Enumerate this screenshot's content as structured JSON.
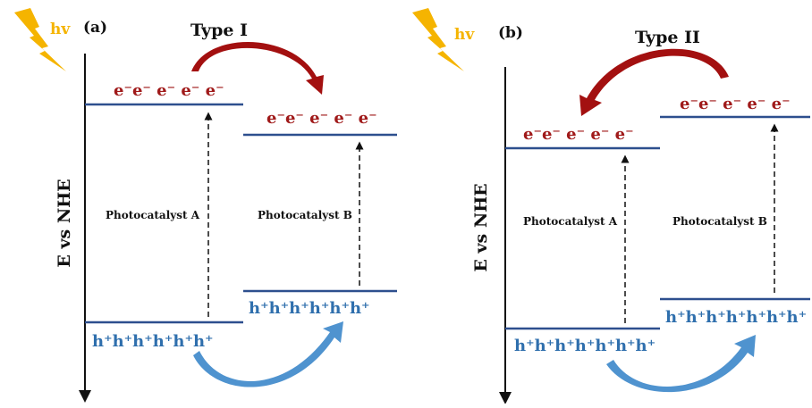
{
  "light": {
    "label": "hv",
    "color": "#f5b400"
  },
  "colors": {
    "electron": "#a01a1a",
    "hole": "#2f6fad",
    "band": "#2d4f8e",
    "arrow_e": "#a31010",
    "arrow_h": "#4f93cf"
  },
  "axis_label": "E vs NHE",
  "panels": [
    {
      "id": "a",
      "label": "(a)",
      "type": "Type I",
      "catalyst_a": "Photocatalyst A",
      "catalyst_b": "Photocatalyst B",
      "electrons_a": "e⁻e⁻ e⁻ e⁻ e⁻",
      "electrons_b": "e⁻e⁻ e⁻ e⁻ e⁻",
      "holes_a": "h⁺h⁺h⁺h⁺h⁺h⁺",
      "holes_b": "h⁺h⁺h⁺h⁺h⁺h⁺"
    },
    {
      "id": "b",
      "label": "(b)",
      "type": "Type II",
      "catalyst_a": "Photocatalyst A",
      "catalyst_b": "Photocatalyst B",
      "electrons_a": "e⁻e⁻ e⁻ e⁻ e⁻",
      "electrons_b": "e⁻e⁻ e⁻ e⁻ e⁻",
      "holes_a": "h⁺h⁺h⁺h⁺h⁺h⁺h⁺",
      "holes_b": "h⁺h⁺h⁺h⁺h⁺h⁺h⁺"
    }
  ]
}
